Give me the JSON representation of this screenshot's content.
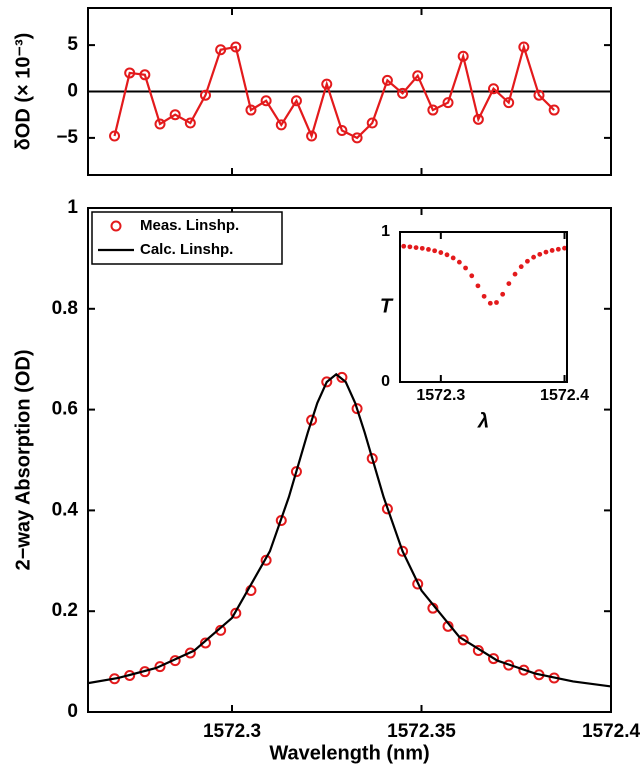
{
  "chart_data": [
    {
      "type": "line",
      "ylabel": "δOD (× 10⁻³)",
      "color": "#e31a1c",
      "markers": true,
      "xlim": [
        1572.262,
        1572.4
      ],
      "ylim": [
        -9,
        9
      ],
      "yticks": [
        {
          "value": -5,
          "label": "−5"
        },
        0,
        5
      ],
      "hline": 0,
      "x": [
        1572.269,
        1572.273,
        1572.277,
        1572.281,
        1572.285,
        1572.289,
        1572.293,
        1572.297,
        1572.301,
        1572.305,
        1572.309,
        1572.313,
        1572.317,
        1572.321,
        1572.325,
        1572.329,
        1572.333,
        1572.337,
        1572.341,
        1572.345,
        1572.349,
        1572.353,
        1572.357,
        1572.361,
        1572.365,
        1572.369,
        1572.373,
        1572.377,
        1572.381,
        1572.385
      ],
      "values": [
        -4.8,
        2,
        1.8,
        -3.5,
        -2.5,
        -3.4,
        -0.4,
        4.5,
        4.8,
        -2,
        -1,
        -3.6,
        -1,
        -4.8,
        0.8,
        -4.2,
        -5,
        -3.4,
        1.2,
        -0.2,
        1.7,
        -2,
        -1.2,
        3.8,
        -3,
        0.3,
        -1.2,
        4.8,
        -0.4,
        -2
      ]
    },
    {
      "type": "line",
      "xlabel": "Wavelength (nm)",
      "ylabel": "2−way Absorption (OD)",
      "xlim": [
        1572.262,
        1572.4
      ],
      "ylim": [
        0,
        1
      ],
      "xticks": [
        1572.3,
        1572.35,
        1572.4
      ],
      "yticks": [
        0,
        0.2,
        0.4,
        0.6,
        0.8,
        1
      ],
      "legend": "upper left",
      "series": [
        {
          "name": "Meas. Linshp.",
          "color": "#e31a1c",
          "style": "markers",
          "x": [
            1572.269,
            1572.273,
            1572.277,
            1572.281,
            1572.285,
            1572.289,
            1572.293,
            1572.297,
            1572.301,
            1572.305,
            1572.309,
            1572.313,
            1572.317,
            1572.321,
            1572.325,
            1572.329,
            1572.333,
            1572.337,
            1572.341,
            1572.345,
            1572.349,
            1572.353,
            1572.357,
            1572.361,
            1572.365,
            1572.369,
            1572.373,
            1572.377,
            1572.381,
            1572.385
          ],
          "values": [
            0.066,
            0.0725,
            0.08,
            0.09,
            0.102,
            0.117,
            0.137,
            0.162,
            0.196,
            0.241,
            0.301,
            0.38,
            0.477,
            0.579,
            0.655,
            0.664,
            0.602,
            0.503,
            0.403,
            0.319,
            0.254,
            0.206,
            0.17,
            0.143,
            0.122,
            0.106,
            0.093,
            0.083,
            0.074,
            0.0675
          ]
        },
        {
          "name": "Calc. Linshp.",
          "color": "#000000",
          "style": "line",
          "x": [
            1572.262,
            1572.27,
            1572.28,
            1572.29,
            1572.3,
            1572.31,
            1572.315,
            1572.32,
            1572.3225,
            1572.325,
            1572.3275,
            1572.33,
            1572.3325,
            1572.335,
            1572.34,
            1572.345,
            1572.35,
            1572.36,
            1572.37,
            1572.38,
            1572.39,
            1572.4
          ],
          "values": [
            0.0572,
            0.0675,
            0.0874,
            0.1217,
            0.1867,
            0.319,
            0.4265,
            0.5547,
            0.613,
            0.6548,
            0.67,
            0.6548,
            0.613,
            0.5547,
            0.4265,
            0.319,
            0.241,
            0.1487,
            0.102,
            0.0762,
            0.0607,
            0.0507
          ]
        }
      ]
    },
    {
      "type": "scatter",
      "xlabel": "λ",
      "ylabel": "T",
      "color": "#e31a1c",
      "xlim": [
        1572.267,
        1572.402
      ],
      "ylim": [
        0,
        1
      ],
      "xticks": [
        1572.3,
        1572.4
      ],
      "yticks": [
        0,
        1
      ],
      "x": [
        1572.27,
        1572.275,
        1572.28,
        1572.285,
        1572.29,
        1572.295,
        1572.3,
        1572.305,
        1572.31,
        1572.315,
        1572.32,
        1572.325,
        1572.33,
        1572.335,
        1572.34,
        1572.345,
        1572.35,
        1572.355,
        1572.36,
        1572.365,
        1572.37,
        1572.375,
        1572.38,
        1572.385,
        1572.39,
        1572.395,
        1572.4
      ],
      "values": [
        0.905,
        0.901,
        0.896,
        0.891,
        0.884,
        0.875,
        0.863,
        0.848,
        0.827,
        0.799,
        0.76,
        0.708,
        0.641,
        0.571,
        0.525,
        0.53,
        0.585,
        0.656,
        0.719,
        0.769,
        0.805,
        0.832,
        0.851,
        0.866,
        0.877,
        0.885,
        0.892
      ]
    }
  ]
}
